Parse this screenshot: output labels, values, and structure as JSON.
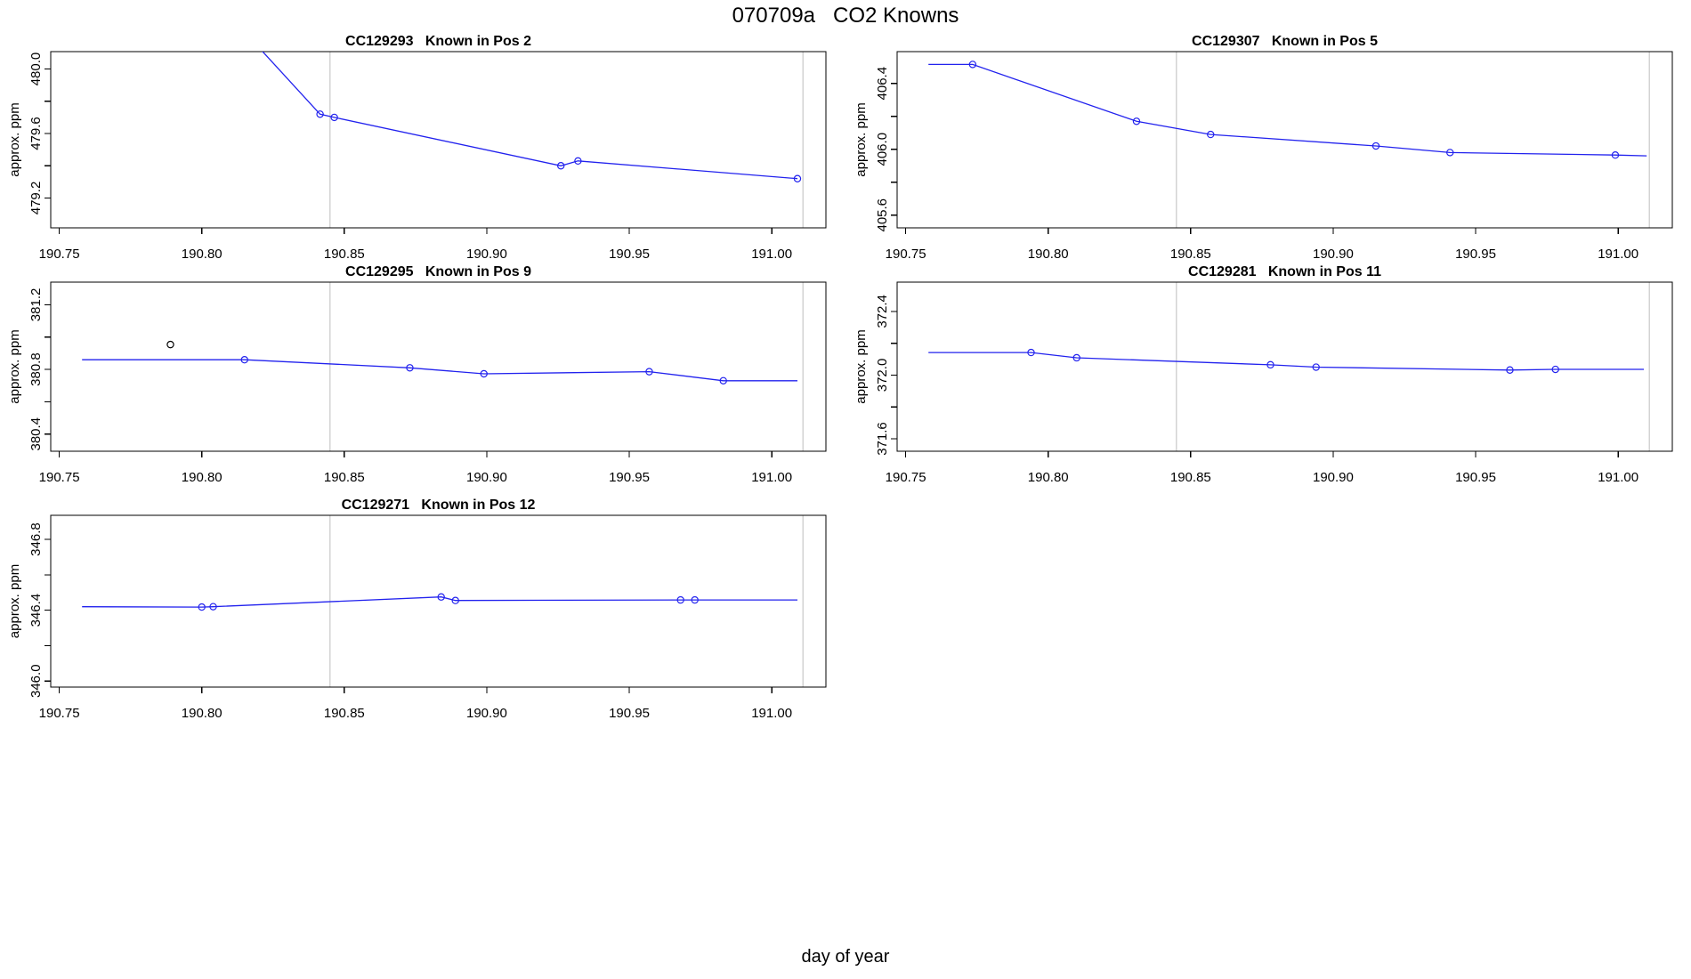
{
  "figure": {
    "title": "070709a   CO2 Knowns",
    "xlabel": "day of year",
    "colors": {
      "line": "#2222ee",
      "marker": "#2222ee",
      "outlier": "#000000",
      "gridline": "#d3d3d3",
      "frame": "#000000",
      "background": "#ffffff"
    }
  },
  "chart_data": [
    {
      "type": "line",
      "id": "CC129293",
      "title": "CC129293   Known in Pos 2",
      "ylabel": "approx. ppm",
      "grid": {
        "col": 0,
        "row": 0
      },
      "xlim": [
        190.747,
        191.019
      ],
      "ylim": [
        479.015,
        480.108
      ],
      "x_ticks": [
        190.75,
        190.8,
        190.85,
        190.9,
        190.95,
        191.0
      ],
      "x_tick_labels": [
        "190.75",
        "190.80",
        "190.85",
        "190.90",
        "190.95",
        "191.00"
      ],
      "y_ticks": [
        479.2,
        479.4,
        479.6,
        479.8,
        480.0
      ],
      "y_tick_labels": [
        "479.2",
        "",
        "479.6",
        "",
        "480.0"
      ],
      "vlines": [
        190.845,
        191.011
      ],
      "line": [
        [
          190.8,
          480.52
        ],
        [
          190.8415,
          479.72
        ],
        [
          190.8465,
          479.7
        ],
        [
          190.926,
          479.4
        ],
        [
          190.932,
          479.43
        ],
        [
          191.009,
          479.32
        ]
      ],
      "points": [
        [
          190.8415,
          479.72
        ],
        [
          190.8465,
          479.7
        ],
        [
          190.926,
          479.4
        ],
        [
          190.932,
          479.43
        ],
        [
          191.009,
          479.32
        ]
      ],
      "outlier_points": []
    },
    {
      "type": "line",
      "id": "CC129307",
      "title": "CC129307   Known in Pos 5",
      "ylabel": "approx. ppm",
      "grid": {
        "col": 1,
        "row": 0
      },
      "xlim": [
        190.747,
        191.019
      ],
      "ylim": [
        405.523,
        406.593
      ],
      "x_ticks": [
        190.75,
        190.8,
        190.85,
        190.9,
        190.95,
        191.0
      ],
      "x_tick_labels": [
        "190.75",
        "190.80",
        "190.85",
        "190.90",
        "190.95",
        "191.00"
      ],
      "y_ticks": [
        405.6,
        405.8,
        406.0,
        406.2,
        406.4
      ],
      "y_tick_labels": [
        "405.6",
        "",
        "406.0",
        "",
        "406.4"
      ],
      "vlines": [
        190.845,
        191.011
      ],
      "line": [
        [
          190.758,
          406.515
        ],
        [
          190.7735,
          406.515
        ],
        [
          190.831,
          406.17
        ],
        [
          190.857,
          406.09
        ],
        [
          190.915,
          406.02
        ],
        [
          190.941,
          405.98
        ],
        [
          190.999,
          405.965
        ],
        [
          191.01,
          405.96
        ]
      ],
      "points": [
        [
          190.7735,
          406.515
        ],
        [
          190.831,
          406.17
        ],
        [
          190.857,
          406.09
        ],
        [
          190.915,
          406.02
        ],
        [
          190.941,
          405.98
        ],
        [
          190.999,
          405.965
        ]
      ],
      "outlier_points": []
    },
    {
      "type": "line",
      "id": "CC129295",
      "title": "CC129295   Known in Pos 9",
      "ylabel": "approx. ppm",
      "grid": {
        "col": 0,
        "row": 1
      },
      "xlim": [
        190.747,
        191.019
      ],
      "ylim": [
        380.294,
        381.34
      ],
      "x_ticks": [
        190.75,
        190.8,
        190.85,
        190.9,
        190.95,
        191.0
      ],
      "x_tick_labels": [
        "190.75",
        "190.80",
        "190.85",
        "190.90",
        "190.95",
        "191.00"
      ],
      "y_ticks": [
        380.4,
        380.6,
        380.8,
        381.0,
        381.2
      ],
      "y_tick_labels": [
        "380.4",
        "",
        "380.8",
        "",
        "381.2"
      ],
      "vlines": [
        190.845,
        191.011
      ],
      "line": [
        [
          190.758,
          380.86
        ],
        [
          190.815,
          380.86
        ],
        [
          190.873,
          380.81
        ],
        [
          190.899,
          380.773
        ],
        [
          190.957,
          380.786
        ],
        [
          190.983,
          380.73
        ],
        [
          191.009,
          380.73
        ]
      ],
      "points": [
        [
          190.815,
          380.86
        ],
        [
          190.873,
          380.81
        ],
        [
          190.899,
          380.773
        ],
        [
          190.957,
          380.786
        ],
        [
          190.983,
          380.73
        ]
      ],
      "outlier_points": [
        [
          190.789,
          380.954
        ]
      ]
    },
    {
      "type": "line",
      "id": "CC129281",
      "title": "CC129281   Known in Pos 11",
      "ylabel": "approx. ppm",
      "grid": {
        "col": 1,
        "row": 1
      },
      "xlim": [
        190.747,
        191.019
      ],
      "ylim": [
        371.522,
        372.584
      ],
      "x_ticks": [
        190.75,
        190.8,
        190.85,
        190.9,
        190.95,
        191.0
      ],
      "x_tick_labels": [
        "190.75",
        "190.80",
        "190.85",
        "190.90",
        "190.95",
        "191.00"
      ],
      "y_ticks": [
        371.6,
        371.8,
        372.0,
        372.2,
        372.4
      ],
      "y_tick_labels": [
        "371.6",
        "",
        "372.0",
        "",
        "372.4"
      ],
      "vlines": [
        190.845,
        191.011
      ],
      "line": [
        [
          190.758,
          372.142
        ],
        [
          190.794,
          372.142
        ],
        [
          190.81,
          372.109
        ],
        [
          190.878,
          372.065
        ],
        [
          190.894,
          372.05
        ],
        [
          190.962,
          372.032
        ],
        [
          190.978,
          372.036
        ],
        [
          191.009,
          372.036
        ]
      ],
      "points": [
        [
          190.794,
          372.142
        ],
        [
          190.81,
          372.109
        ],
        [
          190.878,
          372.065
        ],
        [
          190.894,
          372.05
        ],
        [
          190.962,
          372.032
        ],
        [
          190.978,
          372.036
        ]
      ],
      "outlier_points": []
    },
    {
      "type": "line",
      "id": "CC129271",
      "title": "CC129271   Known in Pos 12",
      "ylabel": "approx. ppm",
      "grid": {
        "col": 0,
        "row": 2
      },
      "xlim": [
        190.747,
        191.019
      ],
      "ylim": [
        345.966,
        346.936
      ],
      "x_ticks": [
        190.75,
        190.8,
        190.85,
        190.9,
        190.95,
        191.0
      ],
      "x_tick_labels": [
        "190.75",
        "190.80",
        "190.85",
        "190.90",
        "190.95",
        "191.00"
      ],
      "y_ticks": [
        346.0,
        346.2,
        346.4,
        346.6,
        346.8
      ],
      "y_tick_labels": [
        "346.0",
        "",
        "346.4",
        "",
        "346.8"
      ],
      "vlines": [
        190.845,
        191.011
      ],
      "line": [
        [
          190.758,
          346.42
        ],
        [
          190.8,
          346.418
        ],
        [
          190.804,
          346.42
        ],
        [
          190.884,
          346.475
        ],
        [
          190.889,
          346.455
        ],
        [
          190.968,
          346.458
        ],
        [
          190.973,
          346.458
        ],
        [
          191.009,
          346.458
        ]
      ],
      "points": [
        [
          190.8,
          346.418
        ],
        [
          190.804,
          346.42
        ],
        [
          190.884,
          346.475
        ],
        [
          190.889,
          346.455
        ],
        [
          190.968,
          346.458
        ],
        [
          190.973,
          346.458
        ]
      ],
      "outlier_points": []
    }
  ]
}
